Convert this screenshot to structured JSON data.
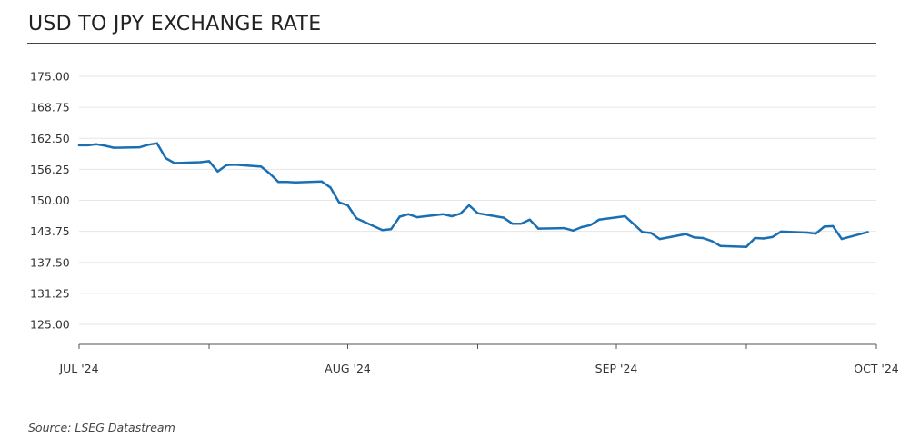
{
  "title": "USD TO JPY EXCHANGE RATE",
  "source": "Source: LSEG Datastream",
  "colors": {
    "line": "#1a6fb3",
    "grid": "#e6e6e6",
    "axis": "#555555"
  },
  "chart_data": {
    "type": "line",
    "title": "USD TO JPY EXCHANGE RATE",
    "xlabel": "",
    "ylabel": "",
    "ylim": [
      125,
      175
    ],
    "yticks": [
      "175.00",
      "168.75",
      "162.50",
      "156.25",
      "150.00",
      "143.75",
      "137.50",
      "131.25",
      "125.00"
    ],
    "xticks": [
      "JUL '24",
      "AUG '24",
      "SEP '24",
      "OCT '24"
    ],
    "grid": true,
    "x": [
      "2024-07-01",
      "2024-07-02",
      "2024-07-03",
      "2024-07-04",
      "2024-07-05",
      "2024-07-08",
      "2024-07-09",
      "2024-07-10",
      "2024-07-11",
      "2024-07-12",
      "2024-07-15",
      "2024-07-16",
      "2024-07-17",
      "2024-07-18",
      "2024-07-19",
      "2024-07-22",
      "2024-07-23",
      "2024-07-24",
      "2024-07-25",
      "2024-07-26",
      "2024-07-29",
      "2024-07-30",
      "2024-07-31",
      "2024-08-01",
      "2024-08-02",
      "2024-08-05",
      "2024-08-06",
      "2024-08-07",
      "2024-08-08",
      "2024-08-09",
      "2024-08-12",
      "2024-08-13",
      "2024-08-14",
      "2024-08-15",
      "2024-08-16",
      "2024-08-19",
      "2024-08-20",
      "2024-08-21",
      "2024-08-22",
      "2024-08-23",
      "2024-08-26",
      "2024-08-27",
      "2024-08-28",
      "2024-08-29",
      "2024-08-30",
      "2024-09-02",
      "2024-09-03",
      "2024-09-04",
      "2024-09-05",
      "2024-09-06",
      "2024-09-09",
      "2024-09-10",
      "2024-09-11",
      "2024-09-12",
      "2024-09-13",
      "2024-09-16",
      "2024-09-17",
      "2024-09-18",
      "2024-09-19",
      "2024-09-20",
      "2024-09-23",
      "2024-09-24",
      "2024-09-25",
      "2024-09-26",
      "2024-09-27",
      "2024-09-30"
    ],
    "series": [
      {
        "values": [
          161.1,
          161.1,
          161.3,
          161.0,
          160.6,
          160.7,
          161.2,
          161.5,
          158.5,
          157.5,
          157.7,
          157.9,
          155.8,
          157.1,
          157.2,
          156.8,
          155.4,
          153.7,
          153.7,
          153.6,
          153.8,
          152.6,
          149.6,
          149.0,
          146.4,
          144.0,
          144.2,
          146.7,
          147.2,
          146.6,
          147.2,
          146.8,
          147.3,
          149.0,
          147.4,
          146.5,
          145.3,
          145.3,
          146.1,
          144.3,
          144.4,
          143.9,
          144.6,
          145.0,
          146.1,
          146.8,
          145.2,
          143.6,
          143.4,
          142.2,
          143.2,
          142.5,
          142.4,
          141.8,
          140.8,
          140.6,
          142.4,
          142.3,
          142.6,
          143.7,
          143.5,
          143.3,
          144.7,
          144.8,
          142.2,
          143.6
        ]
      }
    ]
  }
}
